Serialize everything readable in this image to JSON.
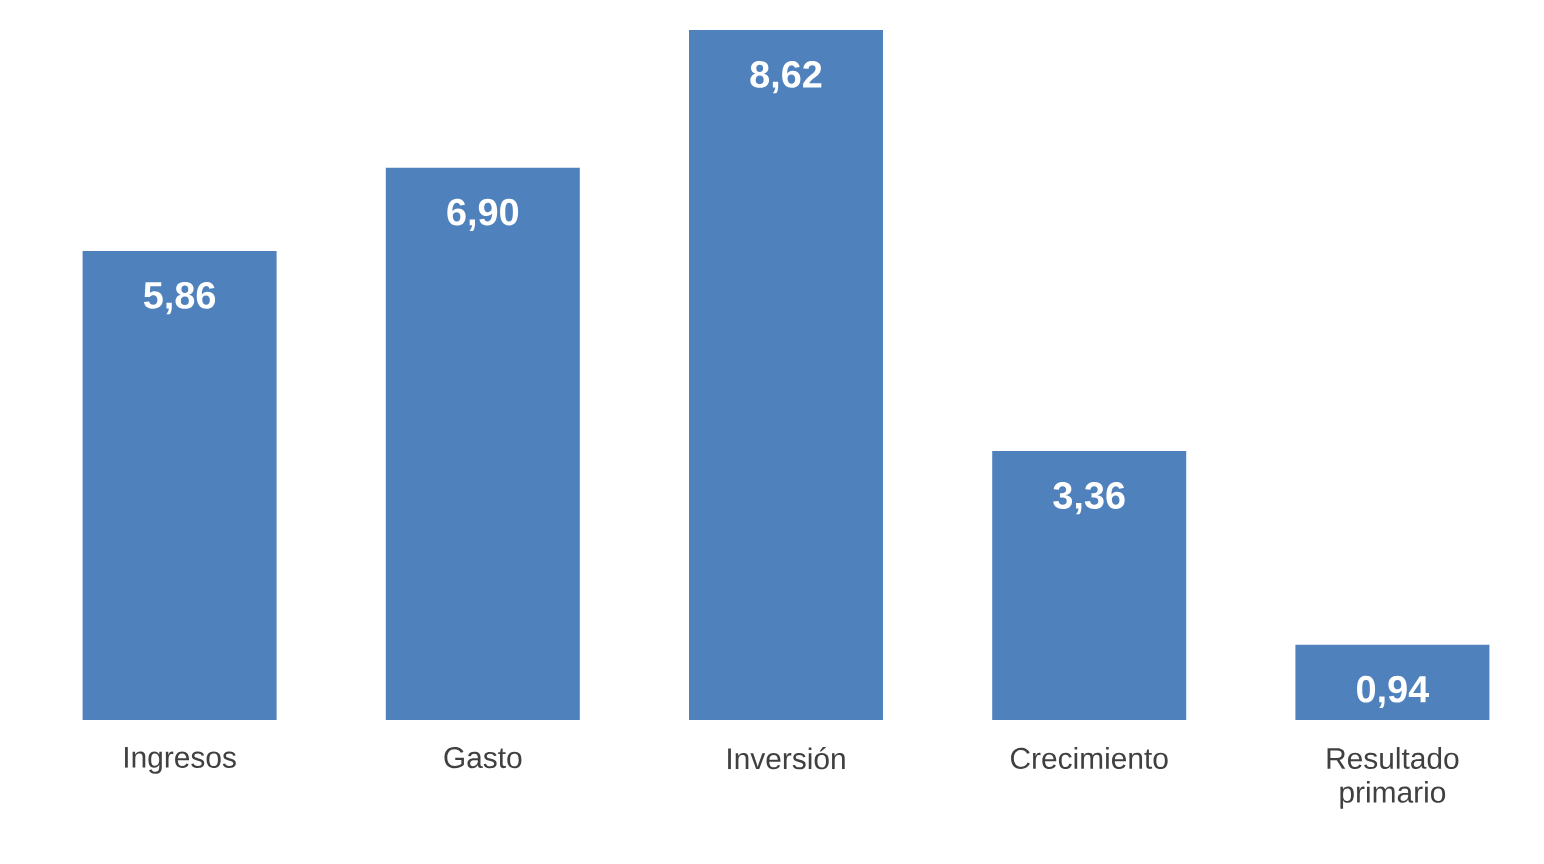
{
  "chart_data": {
    "type": "bar",
    "categories": [
      "Ingresos",
      "Gasto",
      "Inversión",
      "Crecimiento",
      "Resultado primario"
    ],
    "values": [
      5.86,
      6.9,
      8.62,
      3.36,
      0.94
    ],
    "value_labels": [
      "5,86",
      "6,90",
      "8,62",
      "3,36",
      "0,94"
    ],
    "color": "#4f81bd"
  }
}
